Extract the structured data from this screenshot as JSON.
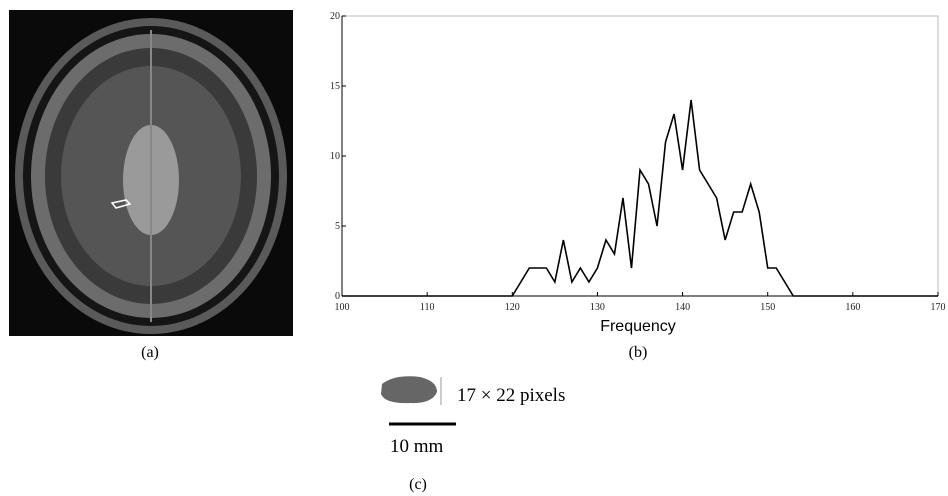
{
  "chart_data": {
    "type": "line",
    "x_label": "Frequency",
    "x": [
      100,
      120,
      121,
      122,
      123,
      124,
      125,
      126,
      127,
      128,
      129,
      130,
      131,
      132,
      133,
      134,
      135,
      136,
      137,
      138,
      139,
      140,
      141,
      142,
      143,
      144,
      145,
      146,
      147,
      148,
      149,
      150,
      151,
      152,
      153,
      170
    ],
    "series": [
      {
        "color": "#000000",
        "values": [
          0,
          0,
          1,
          2,
          2,
          2,
          1,
          4,
          1,
          2,
          1,
          2,
          4,
          3,
          7,
          2,
          9,
          8,
          5,
          11,
          13,
          9,
          14,
          9,
          8,
          7,
          4,
          6,
          6,
          8,
          6,
          2,
          2,
          1,
          0,
          0
        ]
      }
    ],
    "xlim": [
      100,
      170
    ],
    "xticks": [
      100,
      110,
      120,
      130,
      140,
      150,
      160,
      170
    ],
    "ylim": [
      0,
      20
    ],
    "yticks": [
      0,
      5,
      10,
      15,
      20
    ]
  },
  "panel_labels": [
    "(a)",
    "(b)",
    "(c)"
  ],
  "size_text": "17 × 22 pixels",
  "scale_bar_text": "10 mm"
}
